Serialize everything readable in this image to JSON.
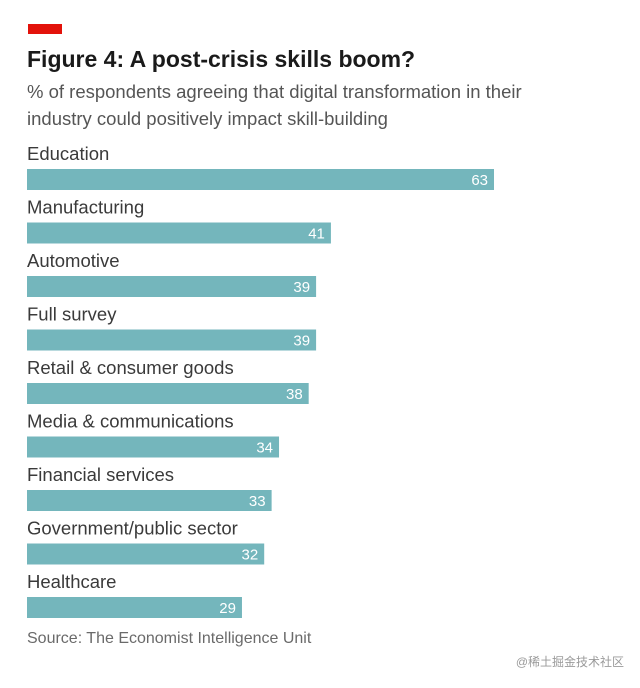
{
  "header": {
    "title": "Figure 4: A post-crisis skills boom?",
    "subtitle": "% of respondents agreeing that digital transformation in their industry could positively impact skill-building"
  },
  "chart_data": {
    "type": "bar",
    "orientation": "horizontal",
    "categories": [
      "Education",
      "Manufacturing",
      "Automotive",
      "Full survey",
      "Retail & consumer goods",
      "Media & communications",
      "Financial services",
      "Government/public sector",
      "Healthcare"
    ],
    "values": [
      63,
      41,
      39,
      39,
      38,
      34,
      33,
      32,
      29
    ],
    "data_labels": true,
    "grid": false,
    "xlim": [
      0,
      63
    ]
  },
  "footer": {
    "source": "Source: The Economist Intelligence Unit",
    "watermark": "@稀土掘金技术社区"
  },
  "colors": {
    "accent": "#e3120b",
    "bar": "#74b6bc",
    "bar_label": "#ffffff",
    "text": "#3a3a3a"
  }
}
